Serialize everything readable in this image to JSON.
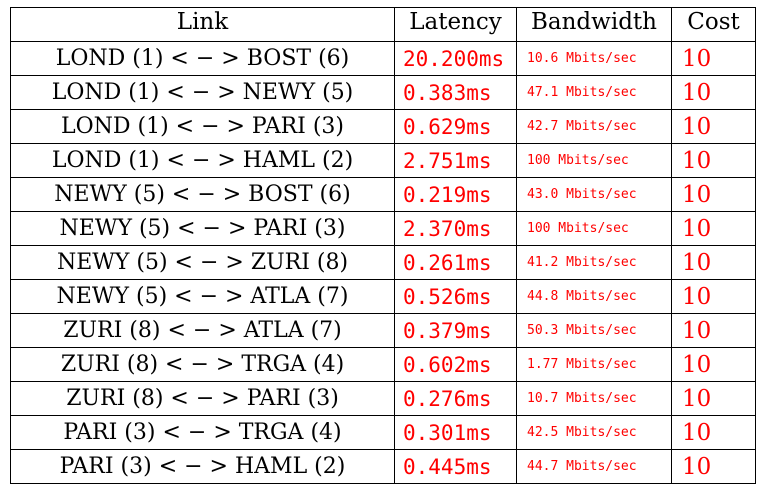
{
  "table": {
    "headers": {
      "link": "Link",
      "latency": "Latency",
      "bandwidth": "Bandwidth",
      "cost": "Cost"
    },
    "rows": [
      {
        "link": "LOND (1) < − > BOST (6)",
        "latency": "20.200ms",
        "bandwidth": "10.6 Mbits/sec",
        "cost": "10"
      },
      {
        "link": "LOND (1) < − > NEWY (5)",
        "latency": "0.383ms",
        "bandwidth": "47.1 Mbits/sec",
        "cost": "10"
      },
      {
        "link": "LOND (1) < − > PARI (3)",
        "latency": "0.629ms",
        "bandwidth": "42.7 Mbits/sec",
        "cost": "10"
      },
      {
        "link": "LOND (1) < − > HAML (2)",
        "latency": "2.751ms",
        "bandwidth": "100 Mbits/sec",
        "cost": "10"
      },
      {
        "link": "NEWY (5) < − > BOST (6)",
        "latency": "0.219ms",
        "bandwidth": "43.0 Mbits/sec",
        "cost": "10"
      },
      {
        "link": "NEWY (5) < − > PARI (3)",
        "latency": "2.370ms",
        "bandwidth": "100 Mbits/sec",
        "cost": "10"
      },
      {
        "link": "NEWY (5) < − > ZURI (8)",
        "latency": "0.261ms",
        "bandwidth": "41.2 Mbits/sec",
        "cost": "10"
      },
      {
        "link": "NEWY (5) < − > ATLA (7)",
        "latency": "0.526ms",
        "bandwidth": "44.8 Mbits/sec",
        "cost": "10"
      },
      {
        "link": "ZURI (8) < − > ATLA (7)",
        "latency": "0.379ms",
        "bandwidth": "50.3 Mbits/sec",
        "cost": "10"
      },
      {
        "link": "ZURI (8) < − > TRGA (4)",
        "latency": "0.602ms",
        "bandwidth": "1.77 Mbits/sec",
        "cost": "10"
      },
      {
        "link": "ZURI (8) < − > PARI (3)",
        "latency": "0.276ms",
        "bandwidth": "10.7 Mbits/sec",
        "cost": "10"
      },
      {
        "link": "PARI (3) < − > TRGA (4)",
        "latency": "0.301ms",
        "bandwidth": "42.5 Mbits/sec",
        "cost": "10"
      },
      {
        "link": "PARI (3) < − > HAML (2)",
        "latency": "0.445ms",
        "bandwidth": "44.7 Mbits/sec",
        "cost": "10"
      }
    ]
  },
  "colors": {
    "value_text": "#ff0000",
    "label_text": "#000000",
    "border": "#000000"
  }
}
